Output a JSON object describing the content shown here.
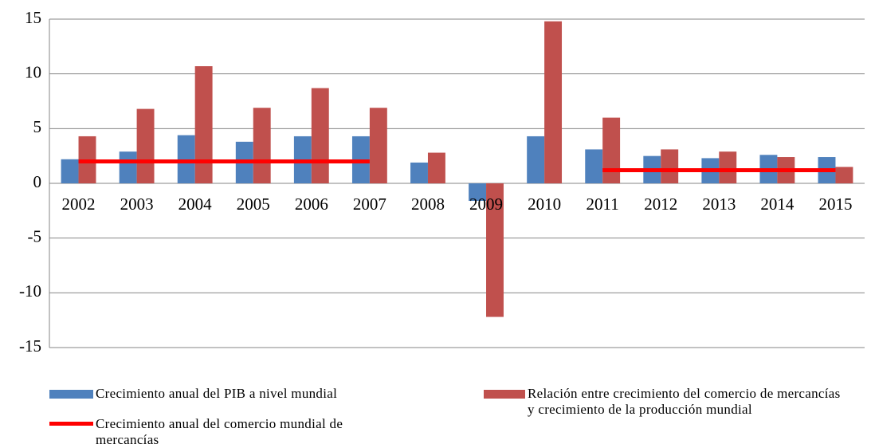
{
  "chart_data": {
    "type": "bar",
    "categories": [
      "2002",
      "2003",
      "2004",
      "2005",
      "2006",
      "2007",
      "2008",
      "2009",
      "2010",
      "2011",
      "2012",
      "2013",
      "2014",
      "2015"
    ],
    "series": [
      {
        "name": "Crecimiento anual del PIB a nivel mundial",
        "type": "bar",
        "color": "#4f81bd",
        "values": [
          2.2,
          2.9,
          4.4,
          3.8,
          4.3,
          4.3,
          1.9,
          -1.6,
          4.3,
          3.1,
          2.5,
          2.3,
          2.6,
          2.4
        ]
      },
      {
        "name": "Relación entre crecimiento del comercio de mercancías y crecimiento de la producción mundial",
        "type": "bar",
        "color": "#c0504d",
        "values": [
          4.3,
          6.8,
          10.7,
          6.9,
          8.7,
          6.9,
          2.8,
          -12.2,
          14.8,
          6.0,
          3.1,
          2.9,
          2.4,
          1.5
        ]
      },
      {
        "name": "Crecimiento anual del comercio mundial de mercancías",
        "type": "line",
        "color": "#ff0000",
        "values": [
          2.0,
          2.0,
          2.0,
          2.0,
          2.0,
          2.0,
          null,
          null,
          null,
          1.2,
          1.2,
          1.2,
          1.2,
          1.2
        ]
      }
    ],
    "ylim": [
      -15,
      15
    ],
    "yticks": [
      -15,
      -10,
      -5,
      0,
      5,
      10,
      15
    ],
    "grid": true
  }
}
